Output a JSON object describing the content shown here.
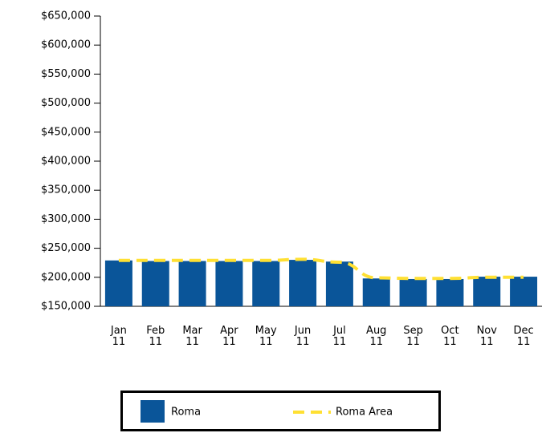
{
  "chart_data": {
    "type": "bar_line",
    "categories": [
      "Jan 11",
      "Feb 11",
      "Mar 11",
      "Apr 11",
      "May 11",
      "Jun 11",
      "Jul 11",
      "Aug 11",
      "Sep 11",
      "Oct 11",
      "Nov 11",
      "Dec 11"
    ],
    "series": [
      {
        "name": "Roma",
        "type": "bar",
        "color": "#0a5599",
        "values": [
          229000,
          228000,
          228000,
          228000,
          228000,
          230000,
          227000,
          198000,
          197000,
          197000,
          201000,
          201000
        ]
      },
      {
        "name": "Roma Area",
        "type": "line",
        "color": "#ffe033",
        "values": [
          229000,
          229000,
          229000,
          229000,
          229000,
          231000,
          226000,
          199000,
          198000,
          198000,
          200000,
          200000
        ]
      }
    ],
    "ylim": [
      150000,
      650000
    ],
    "yticks": [
      {
        "value": 150000,
        "label": "$150,000"
      },
      {
        "value": 200000,
        "label": "$200,000"
      },
      {
        "value": 250000,
        "label": "$250,000"
      },
      {
        "value": 300000,
        "label": "$300,000"
      },
      {
        "value": 350000,
        "label": "$350,000"
      },
      {
        "value": 400000,
        "label": "$400,000"
      },
      {
        "value": 450000,
        "label": "$450,000"
      },
      {
        "value": 500000,
        "label": "$500,000"
      },
      {
        "value": 550000,
        "label": "$550,000"
      },
      {
        "value": 600000,
        "label": "$600,000"
      },
      {
        "value": 650000,
        "label": "$650,000"
      }
    ],
    "legend": "bottom"
  }
}
